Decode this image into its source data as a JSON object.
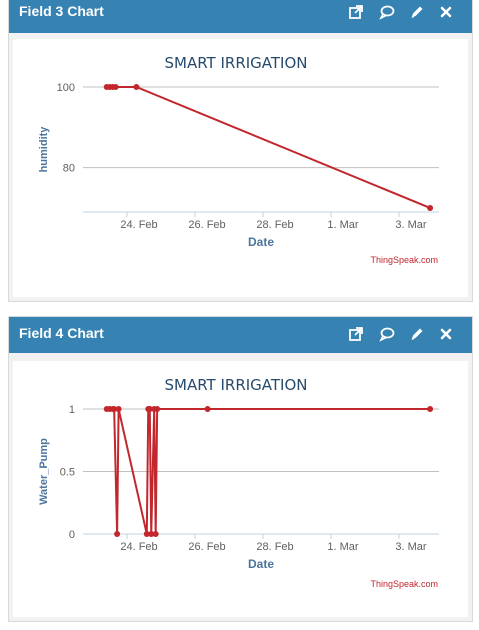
{
  "panels": [
    {
      "title": "Field 3 Chart",
      "icons": [
        "open-external-icon",
        "comment-icon",
        "edit-pencil-icon",
        "close-icon"
      ],
      "credit": "ThingSpeak.com",
      "chart_data": {
        "type": "line",
        "title": "SMART IRRIGATION",
        "xlabel": "Date",
        "ylabel": "humidity",
        "x_tick_labels": [
          "24. Feb",
          "26. Feb",
          "28. Feb",
          "1. Mar",
          "3. Mar"
        ],
        "y_tick_labels": [
          "100",
          "80"
        ],
        "y_ticks": [
          100,
          80
        ],
        "xlim": [
          "2023-02-22",
          "2023-03-04"
        ],
        "ylim": [
          69,
          100
        ],
        "color": "#c1272d",
        "series": [
          {
            "x": [
              "2023-02-22T16:00",
              "2023-02-22T18:00",
              "2023-02-22T20:00",
              "2023-02-22T22:00",
              "2023-02-23T12:00",
              "2023-03-03T18:00"
            ],
            "y": [
              100,
              100,
              100,
              100,
              100,
              70
            ]
          }
        ]
      }
    },
    {
      "title": "Field 4 Chart",
      "icons": [
        "open-external-icon",
        "comment-icon",
        "edit-pencil-icon",
        "close-icon"
      ],
      "credit": "ThingSpeak.com",
      "chart_data": {
        "type": "line",
        "title": "SMART IRRIGATION",
        "xlabel": "Date",
        "ylabel": "Water_Pump",
        "x_tick_labels": [
          "24. Feb",
          "26. Feb",
          "28. Feb",
          "1. Mar",
          "3. Mar"
        ],
        "y_tick_labels": [
          "1",
          "0.5",
          "0"
        ],
        "y_ticks": [
          1,
          0.5,
          0
        ],
        "xlim": [
          "2023-02-22",
          "2023-03-04"
        ],
        "ylim": [
          0,
          1
        ],
        "color": "#c1272d",
        "series": [
          {
            "x": [
              "2023-02-22T16:00",
              "2023-02-22T18:00",
              "2023-02-22T20:00",
              "2023-02-22T21:00",
              "2023-02-22T23:00",
              "2023-02-23T00:00",
              "2023-02-23T19:00",
              "2023-02-23T20:00",
              "2023-02-23T21:00",
              "2023-02-23T22:00",
              "2023-02-24T00:00",
              "2023-02-24T01:00",
              "2023-02-24T02:00",
              "2023-02-25T12:00",
              "2023-03-03T18:00"
            ],
            "y": [
              1,
              1,
              1,
              1,
              0,
              1,
              0,
              1,
              1,
              0,
              1,
              0,
              1,
              1,
              1
            ]
          }
        ]
      }
    }
  ]
}
